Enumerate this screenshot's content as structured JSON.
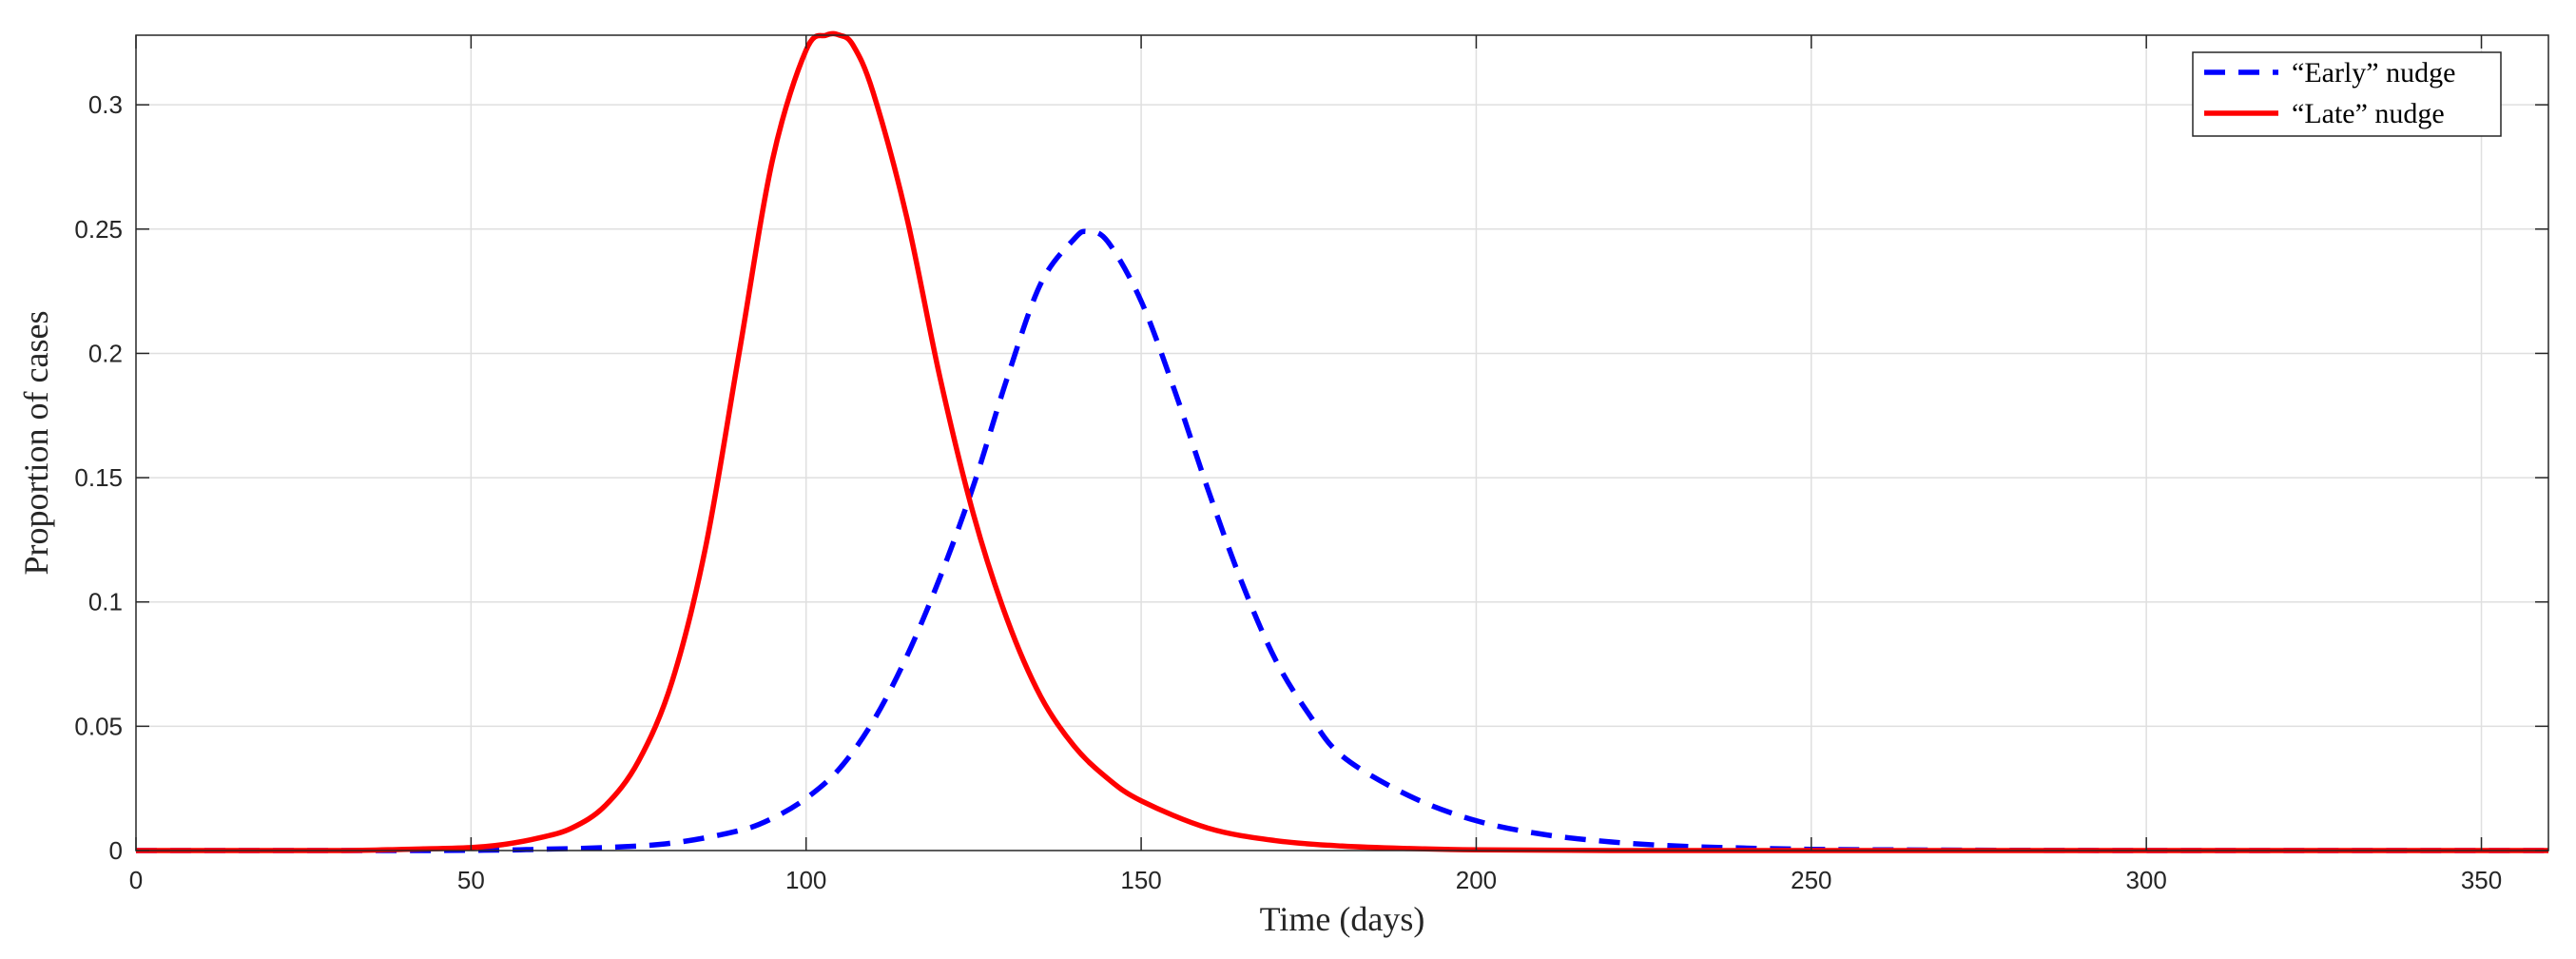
{
  "chart_data": {
    "type": "line",
    "xlabel": "Time (days)",
    "ylabel": "Proportion of cases",
    "xlim": [
      0,
      360
    ],
    "ylim": [
      0,
      0.328
    ],
    "xticks": [
      0,
      50,
      100,
      150,
      200,
      250,
      300,
      350
    ],
    "xtick_labels": [
      "0",
      "50",
      "100",
      "150",
      "200",
      "250",
      "300",
      "350"
    ],
    "yticks": [
      0,
      0.05,
      0.1,
      0.15,
      0.2,
      0.25,
      0.3
    ],
    "ytick_labels": [
      "0",
      "0.05",
      "0.1",
      "0.15",
      "0.2",
      "0.25",
      "0.3"
    ],
    "grid": true,
    "legend_position": "top-right",
    "series": [
      {
        "name": "“Early” nudge",
        "color": "#0000ff",
        "style": "dashed",
        "x": [
          0,
          40,
          55,
          60,
          70,
          80,
          90,
          95,
          100,
          105,
          110,
          115,
          120,
          125,
          130,
          135,
          140,
          142,
          145,
          150,
          155,
          160,
          165,
          170,
          175,
          180,
          190,
          200,
          210,
          220,
          230,
          240,
          250,
          260,
          280,
          300,
          320,
          340,
          360
        ],
        "y": [
          0,
          0,
          0.0002,
          0.0005,
          0.0012,
          0.003,
          0.008,
          0.013,
          0.021,
          0.033,
          0.052,
          0.078,
          0.11,
          0.147,
          0.19,
          0.228,
          0.246,
          0.249,
          0.245,
          0.221,
          0.185,
          0.145,
          0.108,
          0.077,
          0.055,
          0.038,
          0.022,
          0.012,
          0.0065,
          0.0035,
          0.0018,
          0.001,
          0.0005,
          0.0003,
          0.0001,
          0,
          0,
          0,
          0
        ]
      },
      {
        "name": "“Late” nudge",
        "color": "#ff0000",
        "style": "solid",
        "x": [
          0,
          30,
          40,
          50,
          55,
          60,
          65,
          70,
          75,
          80,
          85,
          90,
          95,
          100,
          103,
          105,
          107,
          110,
          115,
          120,
          125,
          130,
          135,
          140,
          145,
          150,
          160,
          170,
          180,
          190,
          200,
          220,
          250,
          300,
          360
        ],
        "y": [
          0,
          0,
          0.0005,
          0.0012,
          0.0025,
          0.005,
          0.009,
          0.018,
          0.036,
          0.068,
          0.122,
          0.2,
          0.278,
          0.322,
          0.328,
          0.328,
          0.324,
          0.305,
          0.255,
          0.19,
          0.135,
          0.093,
          0.062,
          0.042,
          0.029,
          0.02,
          0.009,
          0.004,
          0.0018,
          0.0008,
          0.0003,
          0,
          0,
          0,
          0
        ]
      }
    ]
  }
}
